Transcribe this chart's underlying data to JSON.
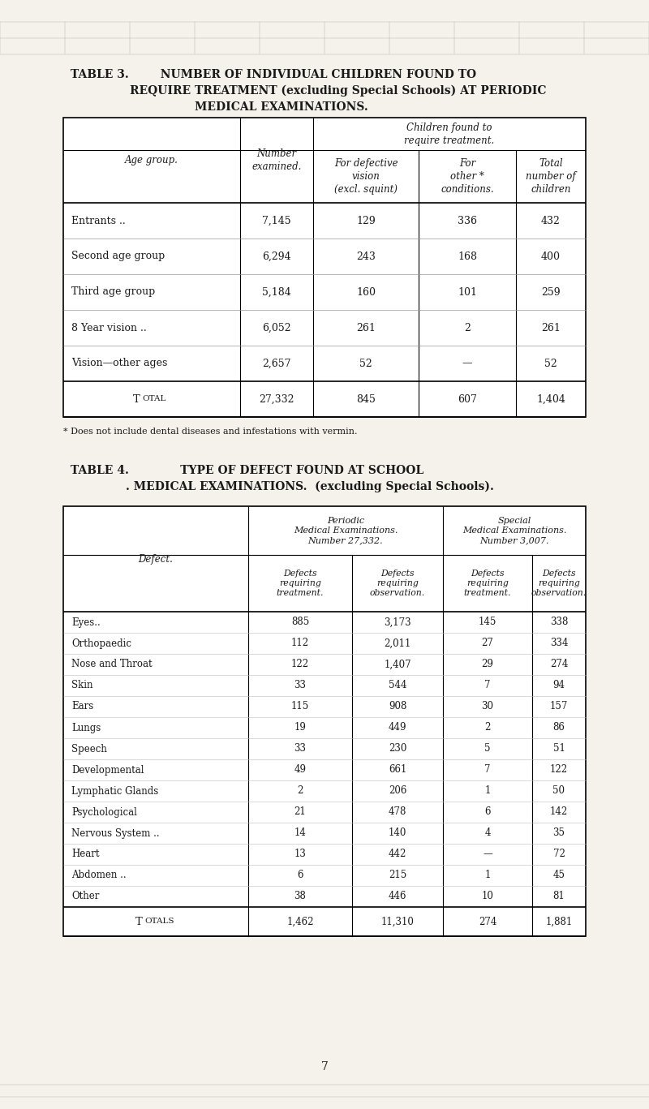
{
  "bg_color": "#f5f2eb",
  "page_bg": "#ddd8cc",
  "text_color": "#1a1a1a",
  "table3_title_line1": "TABLE 3.        NUMBER OF INDIVIDUAL CHILDREN FOUND TO",
  "table3_title_line2": "REQUIRE TREATMENT (excluding Special Schools) AT PERIODIC",
  "table3_title_line3": "MEDICAL EXAMINATIONS.",
  "table3_col0_header": "Age group.",
  "table3_col1_header": "Number\nexamined.",
  "table3_group_header": "Children found to\nrequire treatment.",
  "table3_col2_header": "For defective\nvision\n(excl. squint)",
  "table3_col3_header": "For\nother *\nconditions.",
  "table3_col4_header": "Total\nnumber of\nchildren",
  "table3_rows": [
    [
      "Entrants ..",
      "7,145",
      "129",
      "336",
      "432"
    ],
    [
      "Second age group",
      "6,294",
      "243",
      "168",
      "400"
    ],
    [
      "Third age group",
      "5,184",
      "160",
      "101",
      "259"
    ],
    [
      "8 Year vision ..",
      "6,052",
      "261",
      "2",
      "261"
    ],
    [
      "Vision—other ages",
      "2,657",
      "52",
      "—",
      "52"
    ]
  ],
  "table3_total_row": [
    "27,332",
    "845",
    "607",
    "1,404"
  ],
  "table3_footnote": "* Does not include dental diseases and infestations with vermin.",
  "table4_title_line1": "TABLE 4.             TYPE OF DEFECT FOUND AT SCHOOL",
  "table4_title_line2": "MEDICAL EXAMINATIONS.  (excluding Special Schools).",
  "table4_periodic_header": "Periodic\nMedical Examinations.\nNumber 27,332.",
  "table4_special_header": "Special\nMedical Examinations.\nNumber 3,007.",
  "table4_defect_header": "Defect.",
  "table4_sub_headers": [
    "Defects\nrequiring\ntreatment.",
    "Defects\nrequiring\nobservation.",
    "Defects\nrequiring\ntreatment.",
    "Defects\nrequiring\nobservation."
  ],
  "table4_rows": [
    [
      "Eyes..",
      "885",
      "3,173",
      "145",
      "338"
    ],
    [
      "Orthopaedic",
      "112",
      "2,011",
      "27",
      "334"
    ],
    [
      "Nose and Throat",
      "122",
      "1,407",
      "29",
      "274"
    ],
    [
      "Skin",
      "33",
      "544",
      "7",
      "94"
    ],
    [
      "Ears",
      "115",
      "908",
      "30",
      "157"
    ],
    [
      "Lungs",
      "19",
      "449",
      "2",
      "86"
    ],
    [
      "Speech",
      "33",
      "230",
      "5",
      "51"
    ],
    [
      "Developmental",
      "49",
      "661",
      "7",
      "122"
    ],
    [
      "Lymphatic Glands",
      "2",
      "206",
      "1",
      "50"
    ],
    [
      "Psychological",
      "21",
      "478",
      "6",
      "142"
    ],
    [
      "Nervous System ..",
      "14",
      "140",
      "4",
      "35"
    ],
    [
      "Heart",
      "13",
      "442",
      "—",
      "72"
    ],
    [
      "Abdomen ..",
      "6",
      "215",
      "1",
      "45"
    ],
    [
      "Other",
      "38",
      "446",
      "10",
      "81"
    ]
  ],
  "table4_total_row": [
    "1,462",
    "11,310",
    "274",
    "1,881"
  ],
  "page_number": "7"
}
